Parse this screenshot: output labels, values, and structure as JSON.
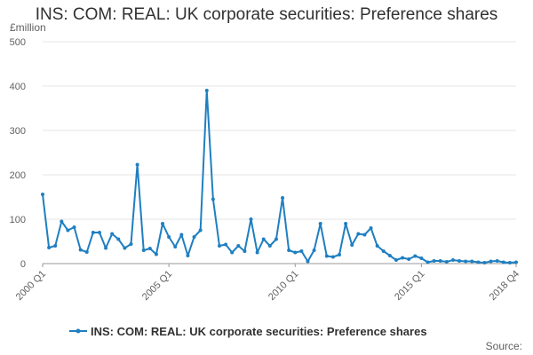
{
  "chart_data": {
    "type": "line",
    "title": "INS: COM: REAL: UK corporate securities: Preference shares",
    "unit_label": "£million",
    "ylim": [
      0,
      500
    ],
    "yticks": [
      0,
      100,
      200,
      300,
      400,
      500
    ],
    "xlabels": [
      "2000 Q1",
      "2005 Q1",
      "2010 Q1",
      "2015 Q1",
      "2018 Q4"
    ],
    "xlabel_indices": [
      0,
      20,
      40,
      60,
      75
    ],
    "grid": true,
    "legend_position": "bottom",
    "source_label": "Source:",
    "series": [
      {
        "name": "INS: COM: REAL: UK corporate securities: Preference shares",
        "color": "#1f7fc1",
        "values": [
          156,
          36,
          40,
          95,
          75,
          82,
          31,
          26,
          70,
          70,
          35,
          67,
          55,
          35,
          44,
          223,
          30,
          34,
          21,
          90,
          60,
          38,
          65,
          18,
          60,
          75,
          390,
          145,
          40,
          43,
          25,
          40,
          28,
          100,
          25,
          55,
          40,
          55,
          148,
          30,
          25,
          28,
          5,
          30,
          90,
          17,
          15,
          20,
          90,
          42,
          67,
          65,
          80,
          40,
          28,
          18,
          8,
          13,
          10,
          17,
          12,
          3,
          6,
          6,
          4,
          8,
          6,
          5,
          5,
          3,
          2,
          5,
          6,
          3,
          2,
          3
        ]
      }
    ]
  }
}
